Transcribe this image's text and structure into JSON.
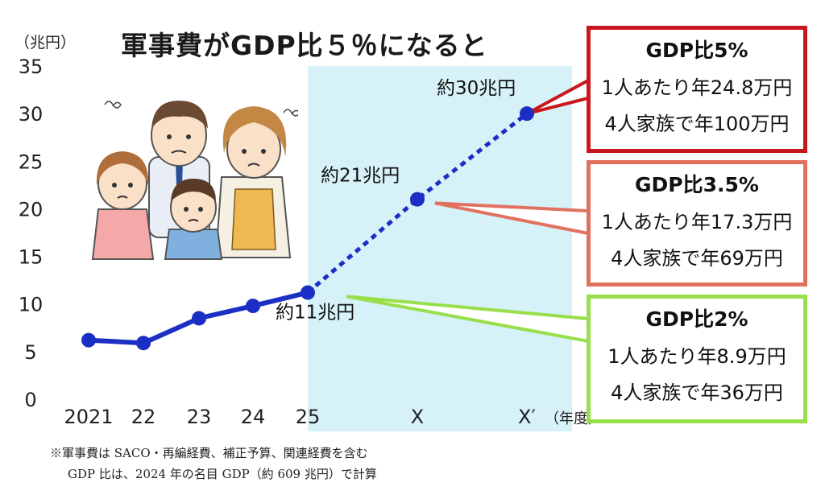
{
  "chart_data": {
    "type": "line",
    "title": "軍事費がGDP比５％になると",
    "ylabel": "（兆円）",
    "xlabel": "（年度）",
    "ylim": [
      0,
      35
    ],
    "yticks": [
      0,
      5,
      10,
      15,
      20,
      25,
      30,
      35
    ],
    "x_tick_labels": [
      "2021",
      "22",
      "23",
      "24",
      "25",
      "X",
      "X′"
    ],
    "series": [
      {
        "values": [
          {
            "x": "2021",
            "y": 6.2
          },
          {
            "x": "22",
            "y": 5.9
          },
          {
            "x": "23",
            "y": 8.5
          },
          {
            "x": "24",
            "y": 9.8
          },
          {
            "x": "25",
            "y": 11.2
          }
        ],
        "style": "solid",
        "color": "#1b2fc4"
      },
      {
        "values": [
          {
            "x": "25",
            "y": 11.2
          },
          {
            "x": "X",
            "y": 21
          },
          {
            "x": "X′",
            "y": 30
          }
        ],
        "style": "dashed",
        "color": "#1b2fc4"
      }
    ],
    "data_labels": [
      {
        "x": "25",
        "y": 11.2,
        "text": "約11兆円"
      },
      {
        "x": "X",
        "y": 21,
        "text": "約21兆円"
      },
      {
        "x": "X′",
        "y": 30,
        "text": "約30兆円"
      }
    ],
    "shaded_region": {
      "from": "25",
      "to": "X′",
      "color": "#d6f1f7"
    }
  },
  "callouts": [
    {
      "id": "c1",
      "title": "GDP比5%",
      "line1": "1人あたり年24.8万円",
      "line2": "4人家族で年100万円",
      "color": "#c8171e"
    },
    {
      "id": "c2",
      "title": "GDP比3.5%",
      "line1": "1人あたり年17.3万円",
      "line2": "4人家族で年69万円",
      "color": "#e2705f"
    },
    {
      "id": "c3",
      "title": "GDP比2%",
      "line1": "1人あたり年8.9万円",
      "line2": "4人家族で年36万円",
      "color": "#98df4b"
    }
  ],
  "notes": {
    "line1": "※軍事費は SACO・再編経費、補正予算、関連経費を含む",
    "line2": "GDP 比は、2024 年の名目 GDP（約 609 兆円）で計算"
  },
  "illustration": "worried-family-illustration"
}
